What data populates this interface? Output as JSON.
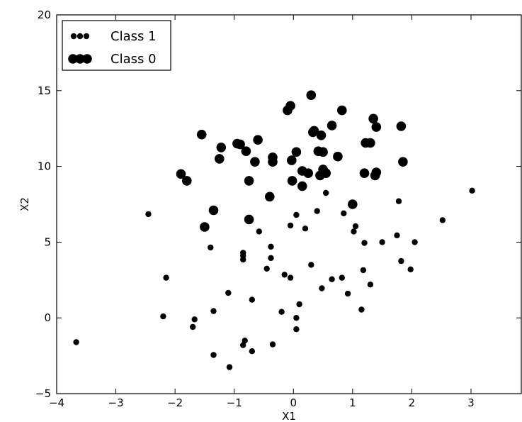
{
  "chart_data": {
    "type": "scatter",
    "title": "",
    "xlabel": "X1",
    "ylabel": "X2",
    "xlim": [
      -4,
      3.85
    ],
    "ylim": [
      -5,
      20
    ],
    "xticks": [
      -4,
      -3,
      -2,
      -1,
      0,
      1,
      2,
      3
    ],
    "yticks": [
      -5,
      0,
      5,
      10,
      15,
      20
    ],
    "xtick_labels": [
      "−4",
      "−3",
      "−2",
      "−1",
      "0",
      "1",
      "2",
      "3"
    ],
    "ytick_labels": [
      "−5",
      "0",
      "5",
      "10",
      "15",
      "20"
    ],
    "grid": false,
    "legend": "top-left",
    "series": [
      {
        "name": "Class 1",
        "color": "#000000",
        "marker": "small-circle",
        "points": [
          [
            -2.45,
            6.85
          ],
          [
            -3.67,
            -1.6
          ],
          [
            -2.15,
            2.65
          ],
          [
            -2.2,
            0.1
          ],
          [
            -1.7,
            -0.6
          ],
          [
            -1.67,
            -0.1
          ],
          [
            -1.4,
            4.65
          ],
          [
            -1.35,
            0.45
          ],
          [
            -1.35,
            -2.45
          ],
          [
            -1.1,
            1.65
          ],
          [
            -1.08,
            -3.25
          ],
          [
            -0.85,
            4.3
          ],
          [
            -0.85,
            4.1
          ],
          [
            -0.85,
            3.85
          ],
          [
            -0.85,
            -1.8
          ],
          [
            -0.82,
            -1.5
          ],
          [
            -0.7,
            1.2
          ],
          [
            -0.7,
            -2.2
          ],
          [
            -0.58,
            5.7
          ],
          [
            -0.45,
            3.25
          ],
          [
            -0.38,
            4.7
          ],
          [
            -0.38,
            3.95
          ],
          [
            -0.35,
            -1.75
          ],
          [
            -0.2,
            0.4
          ],
          [
            -0.15,
            2.85
          ],
          [
            -0.05,
            2.65
          ],
          [
            -0.05,
            6.1
          ],
          [
            0.05,
            6.8
          ],
          [
            0.05,
            0.0
          ],
          [
            0.05,
            -0.75
          ],
          [
            0.1,
            0.9
          ],
          [
            0.2,
            5.9
          ],
          [
            0.3,
            3.5
          ],
          [
            0.4,
            7.05
          ],
          [
            0.48,
            1.95
          ],
          [
            0.55,
            8.25
          ],
          [
            0.65,
            2.55
          ],
          [
            0.82,
            2.65
          ],
          [
            0.85,
            6.9
          ],
          [
            0.92,
            1.6
          ],
          [
            1.02,
            5.7
          ],
          [
            1.05,
            6.05
          ],
          [
            1.15,
            0.55
          ],
          [
            1.18,
            3.15
          ],
          [
            1.2,
            4.95
          ],
          [
            1.3,
            2.2
          ],
          [
            1.5,
            5.0
          ],
          [
            1.75,
            5.45
          ],
          [
            1.78,
            7.7
          ],
          [
            1.82,
            3.75
          ],
          [
            1.98,
            3.2
          ],
          [
            2.05,
            5.0
          ],
          [
            2.52,
            6.45
          ],
          [
            3.02,
            8.4
          ]
        ]
      },
      {
        "name": "Class 0",
        "color": "#000000",
        "marker": "large-circle",
        "points": [
          [
            -1.9,
            9.5
          ],
          [
            -1.8,
            9.05
          ],
          [
            -1.55,
            12.1
          ],
          [
            -1.5,
            6.0
          ],
          [
            -1.35,
            7.1
          ],
          [
            -1.25,
            10.5
          ],
          [
            -1.22,
            11.25
          ],
          [
            -0.95,
            11.5
          ],
          [
            -0.9,
            11.45
          ],
          [
            -0.8,
            11.0
          ],
          [
            -0.75,
            9.05
          ],
          [
            -0.75,
            6.5
          ],
          [
            -0.65,
            10.3
          ],
          [
            -0.6,
            11.75
          ],
          [
            -0.4,
            8.0
          ],
          [
            -0.35,
            10.6
          ],
          [
            -0.35,
            10.3
          ],
          [
            -0.1,
            13.7
          ],
          [
            -0.05,
            14.0
          ],
          [
            -0.03,
            10.4
          ],
          [
            -0.02,
            9.05
          ],
          [
            0.05,
            10.95
          ],
          [
            0.15,
            8.7
          ],
          [
            0.15,
            9.7
          ],
          [
            0.25,
            9.55
          ],
          [
            0.3,
            14.7
          ],
          [
            0.33,
            12.25
          ],
          [
            0.35,
            12.35
          ],
          [
            0.42,
            11.0
          ],
          [
            0.45,
            9.4
          ],
          [
            0.47,
            12.05
          ],
          [
            0.5,
            10.95
          ],
          [
            0.5,
            9.8
          ],
          [
            0.55,
            9.55
          ],
          [
            0.65,
            12.7
          ],
          [
            0.75,
            10.65
          ],
          [
            0.82,
            13.7
          ],
          [
            1.0,
            7.5
          ],
          [
            1.2,
            9.55
          ],
          [
            1.22,
            11.55
          ],
          [
            1.3,
            11.55
          ],
          [
            1.35,
            13.15
          ],
          [
            1.38,
            9.4
          ],
          [
            1.4,
            9.6
          ],
          [
            1.4,
            12.6
          ],
          [
            1.82,
            12.65
          ],
          [
            1.85,
            10.3
          ]
        ]
      }
    ]
  }
}
